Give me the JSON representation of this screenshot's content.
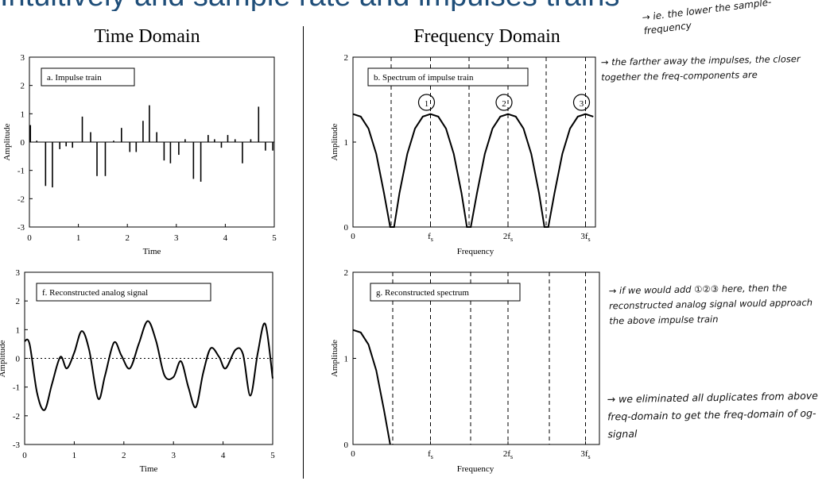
{
  "slide": {
    "title_partial": "Intuitively and sample rate and impulses trains"
  },
  "headers": {
    "time": "Time Domain",
    "frequency": "Frequency Domain"
  },
  "notes": {
    "ie": "→ ie. the lower the sample-frequency",
    "farther": "→ the farther away the impulses, the closer together the freq-components are",
    "if_add": "→ if we would add ①②③ here, then the reconstructed analog signal would approach the above impulse train",
    "eliminated": "→ we eliminated all duplicates from above freq-domain to get the freq-domain of og-signal"
  },
  "colors": {
    "ink": "#000000",
    "title": "#1f4e79"
  },
  "chart_data": [
    {
      "id": "a",
      "type": "bar",
      "panel_label": "a.  Impulse train",
      "xlabel": "Time",
      "ylabel": "Amplitude",
      "xlim": [
        0,
        5
      ],
      "ylim": [
        -3,
        3
      ],
      "xticks": [
        "0",
        "1",
        "2",
        "3",
        "4",
        "5"
      ],
      "yticks": [
        "-3",
        "-2",
        "-1",
        "0",
        "1",
        "2",
        "3"
      ],
      "x": [
        0.02,
        0.15,
        0.33,
        0.47,
        0.62,
        0.75,
        0.88,
        1.08,
        1.25,
        1.38,
        1.55,
        1.72,
        1.88,
        2.05,
        2.18,
        2.32,
        2.45,
        2.6,
        2.75,
        2.88,
        3.05,
        3.18,
        3.35,
        3.5,
        3.65,
        3.78,
        3.92,
        4.05,
        4.2,
        4.35,
        4.52,
        4.68,
        4.82,
        4.97
      ],
      "values": [
        0.6,
        0.05,
        -1.55,
        -1.6,
        -0.25,
        -0.15,
        -0.2,
        0.9,
        0.35,
        -1.2,
        -1.2,
        0.05,
        0.5,
        -0.35,
        -0.35,
        0.75,
        1.3,
        0.35,
        -0.65,
        -0.75,
        -0.45,
        0.1,
        -1.3,
        -1.4,
        0.25,
        0.1,
        -0.2,
        0.25,
        0.1,
        -0.75,
        0.1,
        1.25,
        -0.3,
        -0.3
      ]
    },
    {
      "id": "b",
      "type": "line",
      "panel_label": "b.  Spectrum of impulse train",
      "xlabel": "Frequency",
      "ylabel": "Amplitude",
      "ylim": [
        0,
        2
      ],
      "yticks": [
        "0",
        "1",
        "2"
      ],
      "xticks": [
        "0",
        "fs",
        "2fs",
        "3fs"
      ],
      "markers": [
        "①",
        "②",
        "③"
      ],
      "x": [
        0.0,
        0.1,
        0.2,
        0.3,
        0.4,
        0.48,
        0.53,
        0.6,
        0.7,
        0.8,
        0.9,
        1.0,
        1.1,
        1.2,
        1.3,
        1.4,
        1.47,
        1.52,
        1.6,
        1.7,
        1.8,
        1.9,
        2.0,
        2.1,
        2.2,
        2.3,
        2.4,
        2.47,
        2.52,
        2.6,
        2.7,
        2.8,
        2.9,
        3.0,
        3.1
      ],
      "values": [
        1.33,
        1.3,
        1.16,
        0.86,
        0.4,
        0.0,
        0.0,
        0.4,
        0.86,
        1.16,
        1.3,
        1.33,
        1.3,
        1.16,
        0.86,
        0.4,
        0.0,
        0.0,
        0.4,
        0.86,
        1.16,
        1.3,
        1.33,
        1.3,
        1.16,
        0.86,
        0.4,
        0.0,
        0.0,
        0.4,
        0.86,
        1.16,
        1.3,
        1.33,
        1.3
      ]
    },
    {
      "id": "f",
      "type": "line",
      "panel_label": "f.  Reconstructed analog signal",
      "xlabel": "Time",
      "ylabel": "Amplitude",
      "xlim": [
        0,
        5
      ],
      "ylim": [
        -3,
        3
      ],
      "xticks": [
        "0",
        "1",
        "2",
        "3",
        "4",
        "5"
      ],
      "yticks": [
        "-3",
        "-2",
        "-1",
        "0",
        "1",
        "2",
        "3"
      ],
      "x": [
        0.0,
        0.1,
        0.25,
        0.4,
        0.55,
        0.72,
        0.85,
        1.0,
        1.15,
        1.3,
        1.48,
        1.62,
        1.8,
        1.95,
        2.12,
        2.3,
        2.48,
        2.65,
        2.82,
        3.0,
        3.15,
        3.3,
        3.45,
        3.6,
        3.75,
        3.92,
        4.05,
        4.25,
        4.4,
        4.55,
        4.7,
        4.85,
        5.0
      ],
      "values": [
        0.6,
        0.5,
        -1.2,
        -1.8,
        -0.9,
        0.05,
        -0.35,
        0.2,
        0.95,
        0.3,
        -1.4,
        -0.6,
        0.55,
        0.1,
        -0.35,
        0.5,
        1.3,
        0.6,
        -0.6,
        -0.65,
        -0.1,
        -1.0,
        -1.7,
        -0.5,
        0.35,
        0.05,
        -0.35,
        0.3,
        0.15,
        -1.3,
        0.2,
        1.2,
        -0.7
      ]
    },
    {
      "id": "g",
      "type": "line",
      "panel_label": "g.  Reconstructed spectrum",
      "xlabel": "Frequency",
      "ylabel": "Amplitude",
      "ylim": [
        0,
        2
      ],
      "yticks": [
        "0",
        "1",
        "2"
      ],
      "xticks": [
        "0",
        "fs",
        "2fs",
        "3fs"
      ],
      "x": [
        0.0,
        0.1,
        0.2,
        0.3,
        0.4,
        0.48
      ],
      "values": [
        1.33,
        1.3,
        1.16,
        0.86,
        0.4,
        0.0
      ]
    }
  ]
}
